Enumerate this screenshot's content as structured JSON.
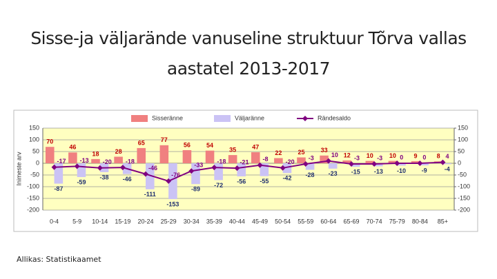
{
  "chart_data": {
    "type": "bar-line",
    "title": "Sisse-ja väljarände vanuseline struktuur Tõrva vallas aastatel 2013-2017",
    "source": "Allikas: Statistikaamet",
    "y_label": "Inimeste arv",
    "categories": [
      "0-4",
      "5-9",
      "10-14",
      "15-19",
      "20-24",
      "25-29",
      "30-34",
      "35-39",
      "40-44",
      "45-49",
      "50-54",
      "55-59",
      "60-64",
      "65-69",
      "70-74",
      "75-79",
      "80-84",
      "85+"
    ],
    "series": [
      {
        "name": "Sisseränne",
        "kind": "bar",
        "color": "#f08080",
        "label_color": "#c00000",
        "values": [
          70,
          46,
          18,
          28,
          65,
          77,
          56,
          54,
          35,
          47,
          22,
          25,
          33,
          12,
          10,
          10,
          9,
          8
        ]
      },
      {
        "name": "Väljaränne",
        "kind": "bar",
        "color": "#cbc3f5",
        "label_color": "#1f2f6f",
        "values": [
          -87,
          -59,
          -38,
          -46,
          -111,
          -153,
          -89,
          -72,
          -56,
          -55,
          -42,
          -28,
          -23,
          -15,
          -13,
          -10,
          -9,
          -4
        ]
      },
      {
        "name": "Rändesaldo",
        "kind": "line",
        "color": "#800080",
        "label_color": "#800080",
        "values": [
          -17,
          -13,
          -20,
          -18,
          -46,
          -76,
          -33,
          -18,
          -21,
          -8,
          -20,
          -3,
          10,
          -3,
          -3,
          0,
          0,
          4
        ]
      }
    ],
    "ylim": [
      -200,
      150
    ],
    "yticks": [
      -200,
      -150,
      -100,
      -50,
      0,
      50,
      100,
      150
    ],
    "y2lim": [
      -200,
      150
    ],
    "y2ticks": [
      -200,
      -150,
      -100,
      -50,
      0,
      50,
      100,
      150
    ],
    "grid": true,
    "legend": "top"
  }
}
